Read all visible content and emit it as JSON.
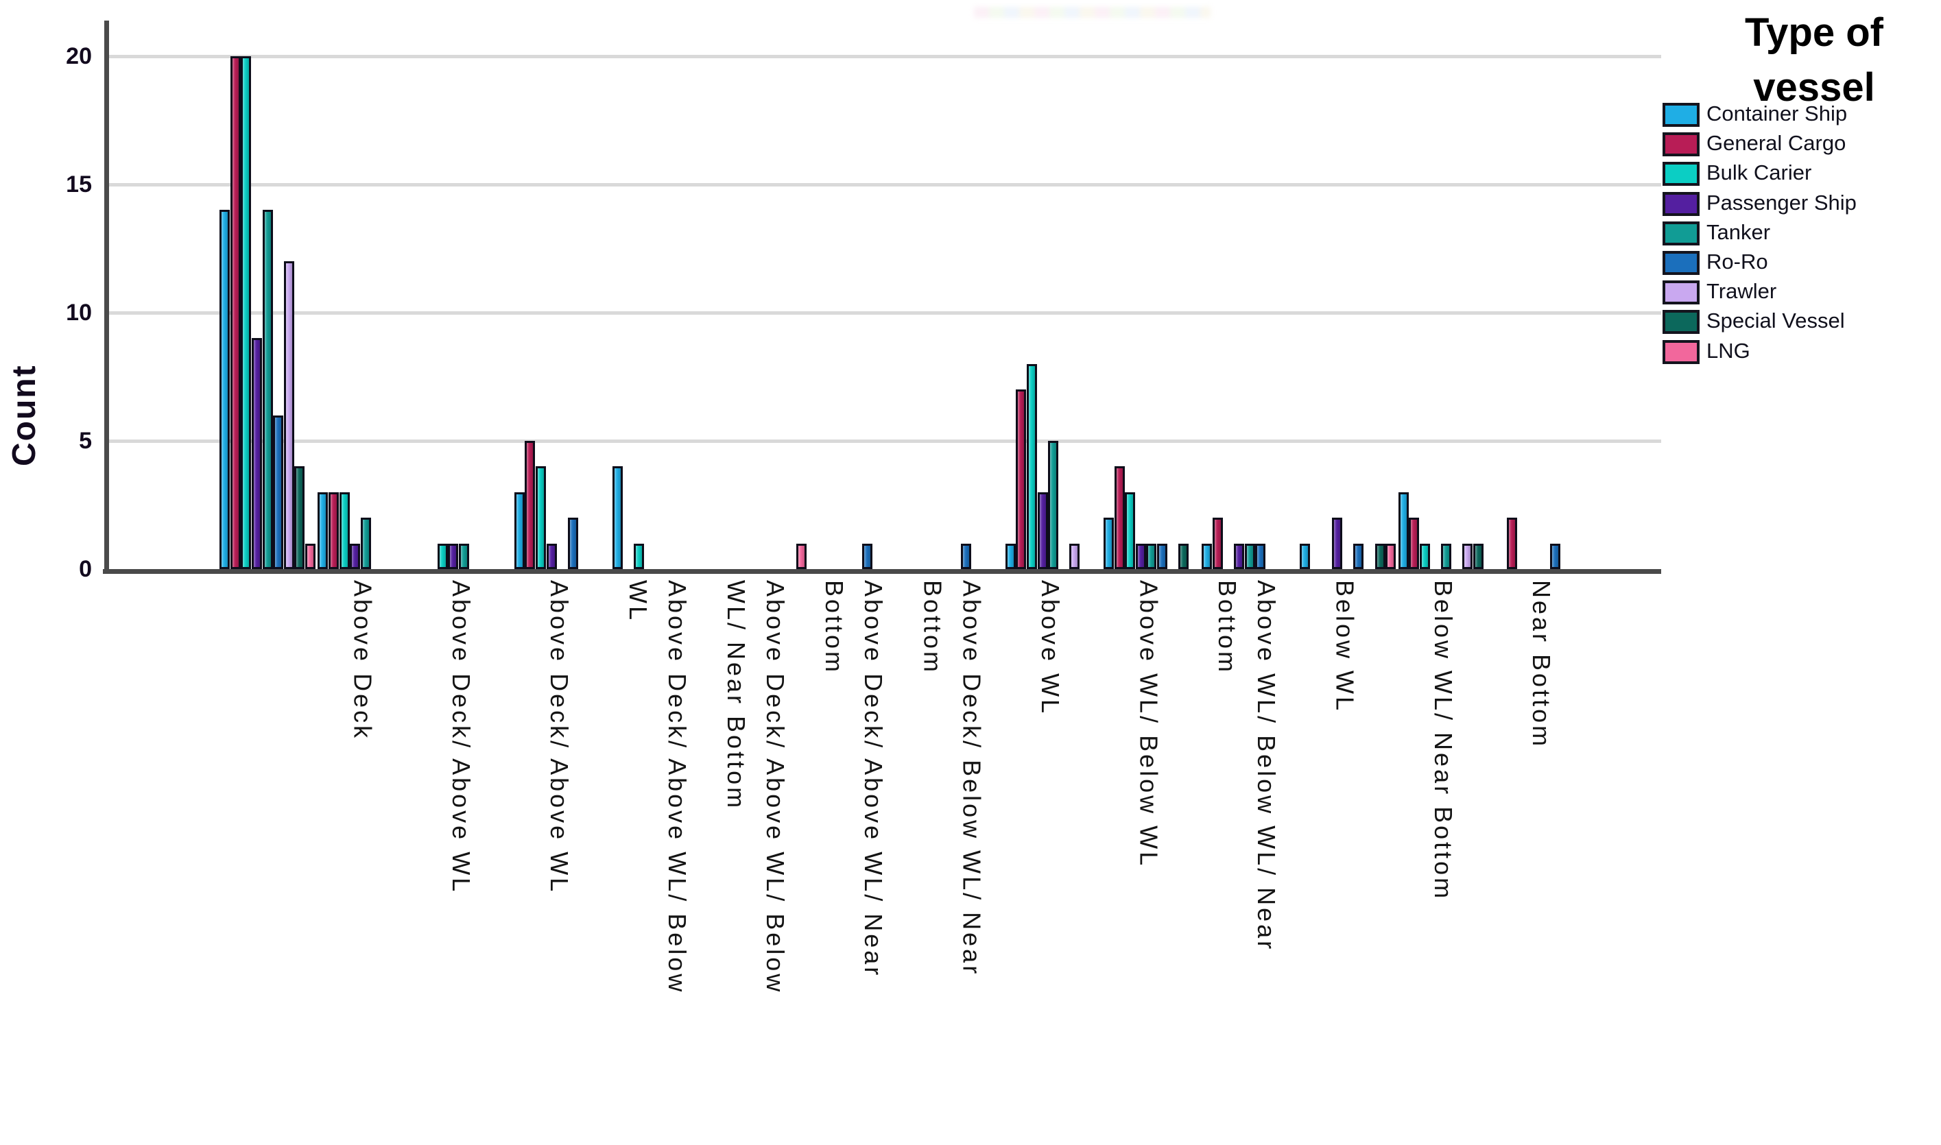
{
  "chart_data": {
    "type": "bar",
    "title": "",
    "ylabel": "Count",
    "xlabel": "",
    "ylim": [
      0,
      20
    ],
    "yticks": [
      0,
      5,
      10,
      15,
      20
    ],
    "grid": "horizontal",
    "legend_position": "right",
    "legend_title_lines": [
      "Type of",
      "vessel"
    ],
    "categories": [
      {
        "label": "",
        "lines": []
      },
      {
        "label": "Above Deck",
        "lines": [
          "Above Deck"
        ]
      },
      {
        "label": "Above Deck/ Above WL",
        "lines": [
          "Above Deck/ Above WL"
        ]
      },
      {
        "label": "Above Deck/ Above WL",
        "lines": [
          "Above Deck/ Above WL"
        ]
      },
      {
        "label": "Above Deck/ Above WL/ Below WL",
        "lines": [
          "Above Deck/ Above WL/ Below",
          "WL"
        ]
      },
      {
        "label": "Above Deck/ Above WL/ Below WL/ Near Bottom",
        "lines": [
          "Above Deck/ Above WL/ Below",
          "WL/ Near Bottom"
        ]
      },
      {
        "label": "Above Deck/ Above WL/ Near Bottom",
        "lines": [
          "Above Deck/ Above WL/ Near",
          "Bottom"
        ]
      },
      {
        "label": "Above Deck/ Below WL/ Near Bottom",
        "lines": [
          "Above Deck/ Below WL/ Near",
          "Bottom"
        ]
      },
      {
        "label": "Above WL",
        "lines": [
          "Above WL"
        ]
      },
      {
        "label": "Above WL/ Below WL",
        "lines": [
          "Above WL/ Below WL"
        ]
      },
      {
        "label": "Above WL/ Below WL/ Near Bottom",
        "lines": [
          "Above WL/ Below WL/ Near",
          "Bottom"
        ]
      },
      {
        "label": "Below WL",
        "lines": [
          "Below WL"
        ]
      },
      {
        "label": "Below WL/ Near Bottom",
        "lines": [
          "Below WL/ Near Bottom"
        ]
      },
      {
        "label": "Near Bottom",
        "lines": [
          "Near Bottom"
        ]
      }
    ],
    "series": [
      {
        "name": "Container Ship",
        "color": "#1FAEE5",
        "values": [
          14,
          3,
          0,
          3,
          4,
          0,
          0,
          0,
          1,
          2,
          1,
          1,
          3,
          0
        ]
      },
      {
        "name": "General Cargo",
        "color": "#B81D56",
        "values": [
          20,
          3,
          0,
          5,
          0,
          0,
          0,
          0,
          7,
          4,
          2,
          0,
          2,
          2
        ]
      },
      {
        "name": "Bulk Carier",
        "color": "#0BCEC4",
        "values": [
          20,
          3,
          1,
          4,
          1,
          0,
          0,
          0,
          8,
          3,
          0,
          0,
          1,
          0
        ]
      },
      {
        "name": "Passenger Ship",
        "color": "#541FA0",
        "values": [
          9,
          1,
          1,
          1,
          0,
          0,
          0,
          0,
          3,
          1,
          1,
          2,
          0,
          0
        ]
      },
      {
        "name": "Tanker",
        "color": "#119C95",
        "values": [
          14,
          2,
          1,
          0,
          0,
          0,
          0,
          0,
          5,
          1,
          1,
          0,
          1,
          0
        ]
      },
      {
        "name": "Ro-Ro",
        "color": "#1B6FBC",
        "values": [
          6,
          0,
          0,
          2,
          0,
          0,
          1,
          1,
          0,
          1,
          1,
          1,
          0,
          1
        ]
      },
      {
        "name": "Trawler",
        "color": "#C9A8F0",
        "values": [
          12,
          0,
          0,
          0,
          0,
          0,
          0,
          0,
          1,
          0,
          0,
          0,
          1,
          0
        ]
      },
      {
        "name": "Special Vessel",
        "color": "#0C685C",
        "values": [
          4,
          0,
          0,
          0,
          0,
          0,
          0,
          0,
          0,
          1,
          0,
          1,
          1,
          0
        ]
      },
      {
        "name": "LNG",
        "color": "#F2679C",
        "values": [
          1,
          0,
          0,
          0,
          0,
          1,
          0,
          0,
          0,
          0,
          0,
          1,
          0,
          0
        ]
      }
    ],
    "colors": {
      "axis": "#4a4a4a",
      "gridline": "#d9d9d9",
      "bar_border": "#0d0d1a",
      "text": "#120a1e"
    }
  }
}
